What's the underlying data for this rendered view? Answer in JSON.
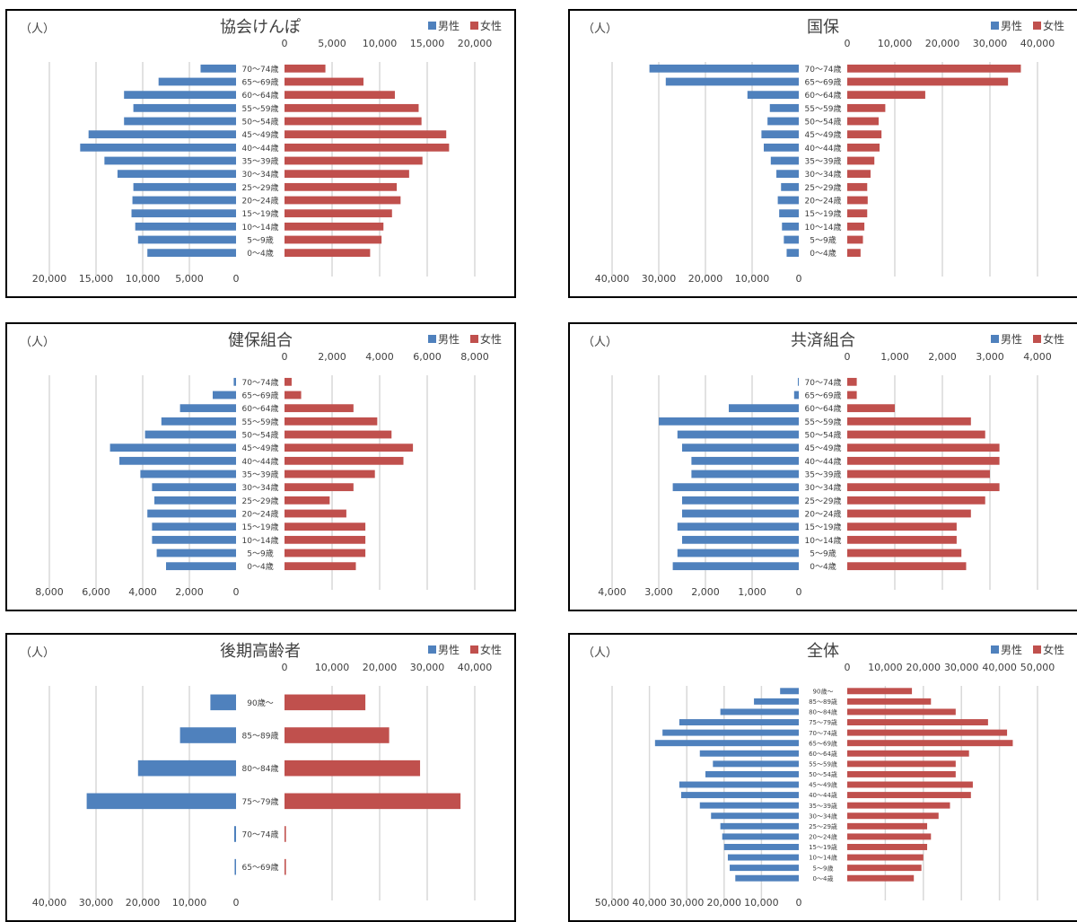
{
  "legend": {
    "male": "男性",
    "female": "女性"
  },
  "colors": {
    "male": "#4f81bd",
    "female": "#c0504d",
    "grid": "#d9d9d9",
    "text": "#404040"
  },
  "chart_data": [
    {
      "type": "bar",
      "title": "協会けんぽ",
      "unit": "（人）",
      "legend_position": "top-right",
      "grid": true,
      "categories": [
        "70～74歳",
        "65～69歳",
        "60～64歳",
        "55～59歳",
        "50～54歳",
        "45～49歳",
        "40～44歳",
        "35～39歳",
        "30～34歳",
        "25～29歳",
        "20～24歳",
        "15～19歳",
        "10～14歳",
        "5～9歳",
        "0～4歳"
      ],
      "series": [
        {
          "name": "男性",
          "values": [
            3800,
            8300,
            12000,
            11000,
            12000,
            15800,
            16700,
            14100,
            12700,
            11000,
            11100,
            11200,
            10800,
            10500,
            9500
          ]
        },
        {
          "name": "女性",
          "values": [
            4300,
            8300,
            11600,
            14100,
            14400,
            17000,
            17300,
            14500,
            13100,
            11800,
            12200,
            11300,
            10400,
            10200,
            9000
          ]
        }
      ],
      "xlim": [
        0,
        20000
      ],
      "ticks_top": [
        "0",
        "5,000",
        "10,000",
        "15,000",
        "20,000"
      ],
      "ticks_bottom": [
        "20,000",
        "15,000",
        "10,000",
        "5,000",
        "0"
      ]
    },
    {
      "type": "bar",
      "title": "国保",
      "unit": "（人）",
      "legend_position": "top-right",
      "grid": true,
      "categories": [
        "70～74歳",
        "65～69歳",
        "60～64歳",
        "55～59歳",
        "50～54歳",
        "45～49歳",
        "40～44歳",
        "35～39歳",
        "30～34歳",
        "25～29歳",
        "20～24歳",
        "15～19歳",
        "10～14歳",
        "5～9歳",
        "0～4歳"
      ],
      "series": [
        {
          "name": "男性",
          "values": [
            32000,
            28500,
            11000,
            6200,
            6700,
            8000,
            7500,
            6000,
            4800,
            3800,
            4500,
            4200,
            3600,
            3200,
            2600
          ]
        },
        {
          "name": "女性",
          "values": [
            36500,
            33800,
            16400,
            8000,
            6600,
            7200,
            6800,
            5700,
            4900,
            4200,
            4300,
            4200,
            3600,
            3300,
            2800
          ]
        }
      ],
      "xlim": [
        0,
        40000
      ],
      "ticks_top": [
        "0",
        "10,000",
        "20,000",
        "30,000",
        "40,000"
      ],
      "ticks_bottom": [
        "40,000",
        "30,000",
        "20,000",
        "10,000",
        "0"
      ]
    },
    {
      "type": "bar",
      "title": "健保組合",
      "unit": "（人）",
      "legend_position": "top-right",
      "grid": true,
      "categories": [
        "70～74歳",
        "65～69歳",
        "60～64歳",
        "55～59歳",
        "50～54歳",
        "45～49歳",
        "40～44歳",
        "35～39歳",
        "30～34歳",
        "25～29歳",
        "20～24歳",
        "15～19歳",
        "10～14歳",
        "5～9歳",
        "0～4歳"
      ],
      "series": [
        {
          "name": "男性",
          "values": [
            100,
            1000,
            2400,
            3200,
            3900,
            5400,
            5000,
            4100,
            3600,
            3500,
            3800,
            3600,
            3600,
            3400,
            3000
          ]
        },
        {
          "name": "女性",
          "values": [
            300,
            700,
            2900,
            3900,
            4500,
            5400,
            5000,
            3800,
            2900,
            1900,
            2600,
            3400,
            3400,
            3400,
            3000
          ]
        }
      ],
      "xlim": [
        0,
        8000
      ],
      "ticks_top": [
        "0",
        "2,000",
        "4,000",
        "6,000",
        "8,000"
      ],
      "ticks_bottom": [
        "8,000",
        "6,000",
        "4,000",
        "2,000",
        "0"
      ]
    },
    {
      "type": "bar",
      "title": "共済組合",
      "unit": "（人）",
      "legend_position": "top-right",
      "grid": true,
      "categories": [
        "70～74歳",
        "65～69歳",
        "60～64歳",
        "55～59歳",
        "50～54歳",
        "45～49歳",
        "40～44歳",
        "35～39歳",
        "30～34歳",
        "25～29歳",
        "20～24歳",
        "15～19歳",
        "10～14歳",
        "5～9歳",
        "0～4歳"
      ],
      "series": [
        {
          "name": "男性",
          "values": [
            20,
            100,
            1500,
            3000,
            2600,
            2500,
            2300,
            2300,
            2700,
            2500,
            2500,
            2600,
            2500,
            2600,
            2700
          ]
        },
        {
          "name": "女性",
          "values": [
            200,
            200,
            1000,
            2600,
            2900,
            3200,
            3200,
            3000,
            3200,
            2900,
            2600,
            2300,
            2300,
            2400,
            2500
          ]
        }
      ],
      "xlim": [
        0,
        4000
      ],
      "ticks_top": [
        "0",
        "1,000",
        "2,000",
        "3,000",
        "4,000"
      ],
      "ticks_bottom": [
        "4,000",
        "3,000",
        "2,000",
        "1,000",
        "0"
      ]
    },
    {
      "type": "bar",
      "title": "後期高齢者",
      "unit": "（人）",
      "legend_position": "top-right",
      "grid": true,
      "categories": [
        "90歳～",
        "85～89歳",
        "80～84歳",
        "75～79歳",
        "70～74歳",
        "65～69歳"
      ],
      "series": [
        {
          "name": "男性",
          "values": [
            5500,
            12000,
            21000,
            32000,
            400,
            300
          ]
        },
        {
          "name": "女性",
          "values": [
            17000,
            22000,
            28500,
            37000,
            300,
            300
          ]
        }
      ],
      "xlim": [
        0,
        40000
      ],
      "ticks_top": [
        "0",
        "10,000",
        "20,000",
        "30,000",
        "40,000"
      ],
      "ticks_bottom": [
        "40,000",
        "30,000",
        "20,000",
        "10,000",
        "0"
      ]
    },
    {
      "type": "bar",
      "title": "全体",
      "unit": "（人）",
      "legend_position": "top-right",
      "grid": true,
      "categories": [
        "90歳～",
        "85～89歳",
        "80～84歳",
        "75～79歳",
        "70～74歳",
        "65～69歳",
        "60～64歳",
        "55～59歳",
        "50～54歳",
        "45～49歳",
        "40～44歳",
        "35～39歳",
        "30～34歳",
        "25～29歳",
        "20～24歳",
        "15～19歳",
        "10～14歳",
        "5～9歳",
        "0～4歳"
      ],
      "series": [
        {
          "name": "男性",
          "values": [
            5000,
            12000,
            21000,
            32000,
            36500,
            38500,
            26500,
            23000,
            25000,
            32000,
            31500,
            26500,
            23500,
            21000,
            20500,
            20000,
            19000,
            18500,
            17000
          ]
        },
        {
          "name": "女性",
          "values": [
            17000,
            22000,
            28500,
            37000,
            42000,
            43500,
            32000,
            28500,
            28500,
            33000,
            32500,
            27000,
            24000,
            21000,
            22000,
            21000,
            20000,
            19500,
            17500
          ]
        }
      ],
      "xlim": [
        0,
        50000
      ],
      "ticks_top": [
        "0",
        "10,000",
        "20,000",
        "30,000",
        "40,000",
        "50,000"
      ],
      "ticks_bottom": [
        "50,000",
        "40,000",
        "30,000",
        "20,000",
        "10,000",
        "0"
      ]
    }
  ]
}
